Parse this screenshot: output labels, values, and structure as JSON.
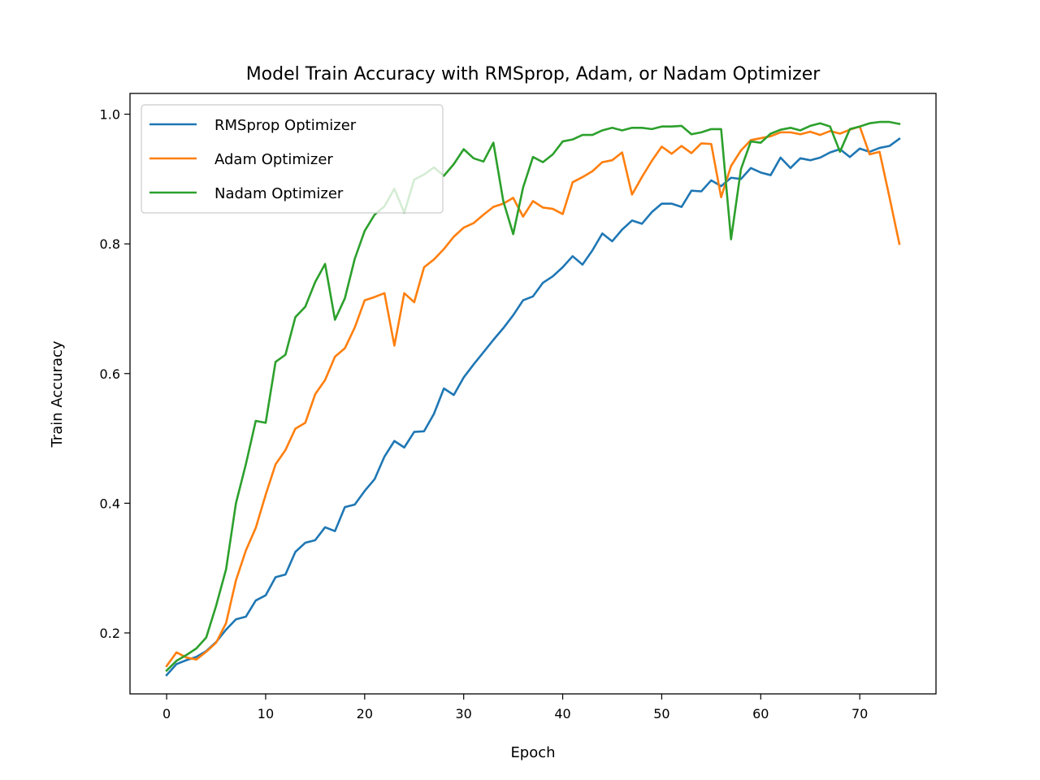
{
  "chart_data": {
    "type": "line",
    "title": "Model Train Accuracy with RMSprop, Adam, or Nadam Optimizer",
    "xlabel": "Epoch",
    "ylabel": "Train Accuracy",
    "xlim": [
      -3.7,
      77.7
    ],
    "ylim": [
      0.106,
      1.032
    ],
    "xticks": [
      0,
      10,
      20,
      30,
      40,
      50,
      60,
      70
    ],
    "yticks": [
      0.2,
      0.4,
      0.6,
      0.8,
      1.0
    ],
    "xtick_labels": [
      "0",
      "10",
      "20",
      "30",
      "40",
      "50",
      "60",
      "70"
    ],
    "ytick_labels": [
      "0.2",
      "0.4",
      "0.6",
      "0.8",
      "1.0"
    ],
    "grid": false,
    "legend_position": "top-left",
    "series": [
      {
        "name": "RMSprop Optimizer",
        "color": "#1f77b4",
        "values": [
          0.135,
          0.152,
          0.158,
          0.163,
          0.172,
          0.186,
          0.205,
          0.221,
          0.225,
          0.25,
          0.258,
          0.286,
          0.29,
          0.325,
          0.339,
          0.343,
          0.363,
          0.357,
          0.394,
          0.398,
          0.419,
          0.437,
          0.472,
          0.496,
          0.486,
          0.51,
          0.511,
          0.538,
          0.577,
          0.567,
          0.594,
          0.614,
          0.633,
          0.652,
          0.67,
          0.69,
          0.713,
          0.719,
          0.74,
          0.75,
          0.764,
          0.781,
          0.768,
          0.79,
          0.816,
          0.804,
          0.822,
          0.836,
          0.831,
          0.849,
          0.862,
          0.862,
          0.857,
          0.882,
          0.881,
          0.898,
          0.889,
          0.902,
          0.9,
          0.917,
          0.91,
          0.906,
          0.933,
          0.917,
          0.932,
          0.929,
          0.933,
          0.941,
          0.946,
          0.934,
          0.947,
          0.942,
          0.948,
          0.951,
          0.962
        ]
      },
      {
        "name": "Adam Optimizer",
        "color": "#ff7f0e",
        "values": [
          0.149,
          0.17,
          0.162,
          0.159,
          0.171,
          0.185,
          0.215,
          0.281,
          0.327,
          0.362,
          0.413,
          0.46,
          0.482,
          0.515,
          0.524,
          0.568,
          0.59,
          0.626,
          0.639,
          0.671,
          0.713,
          0.718,
          0.724,
          0.643,
          0.724,
          0.71,
          0.764,
          0.776,
          0.792,
          0.811,
          0.825,
          0.832,
          0.845,
          0.857,
          0.862,
          0.871,
          0.842,
          0.866,
          0.856,
          0.854,
          0.846,
          0.895,
          0.903,
          0.912,
          0.926,
          0.929,
          0.941,
          0.876,
          0.903,
          0.928,
          0.95,
          0.939,
          0.951,
          0.94,
          0.955,
          0.954,
          0.872,
          0.92,
          0.944,
          0.96,
          0.963,
          0.966,
          0.972,
          0.972,
          0.969,
          0.973,
          0.968,
          0.974,
          0.97,
          0.976,
          0.981,
          0.938,
          0.942,
          0.872,
          0.8
        ]
      },
      {
        "name": "Nadam Optimizer",
        "color": "#2ca02c",
        "values": [
          0.142,
          0.157,
          0.166,
          0.176,
          0.193,
          0.242,
          0.298,
          0.4,
          0.46,
          0.527,
          0.524,
          0.618,
          0.629,
          0.687,
          0.703,
          0.741,
          0.769,
          0.683,
          0.716,
          0.777,
          0.82,
          0.845,
          0.858,
          0.885,
          0.848,
          0.899,
          0.907,
          0.918,
          0.905,
          0.923,
          0.946,
          0.932,
          0.927,
          0.956,
          0.866,
          0.815,
          0.887,
          0.934,
          0.926,
          0.938,
          0.958,
          0.961,
          0.968,
          0.968,
          0.975,
          0.979,
          0.975,
          0.979,
          0.979,
          0.977,
          0.981,
          0.981,
          0.982,
          0.969,
          0.972,
          0.977,
          0.977,
          0.807,
          0.915,
          0.958,
          0.956,
          0.97,
          0.976,
          0.979,
          0.975,
          0.982,
          0.986,
          0.981,
          0.942,
          0.977,
          0.981,
          0.986,
          0.988,
          0.988,
          0.985
        ]
      }
    ]
  }
}
